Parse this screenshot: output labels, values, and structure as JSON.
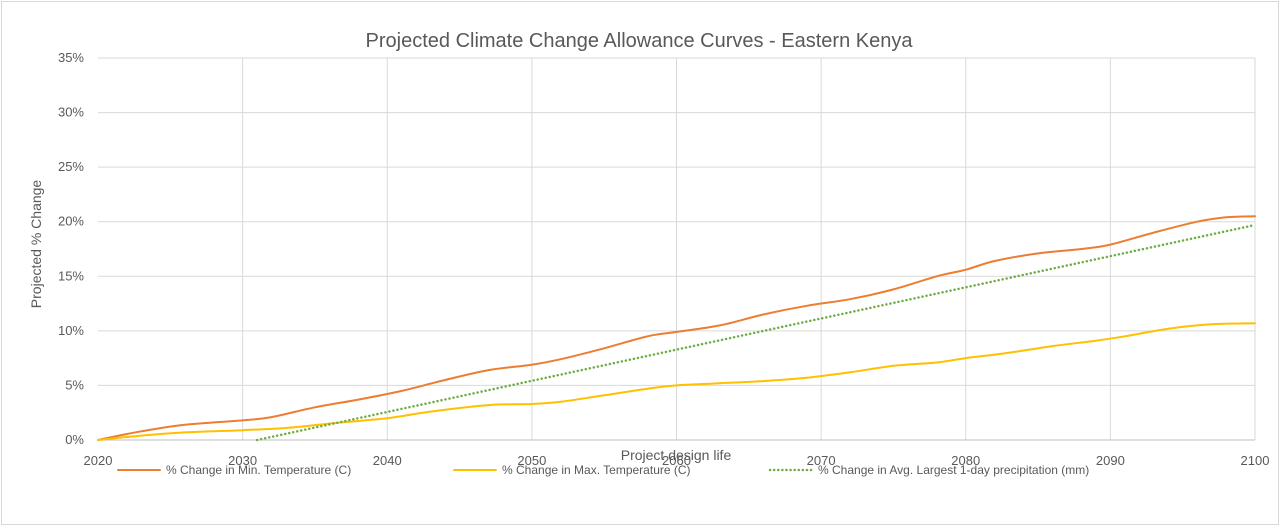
{
  "chart_data": {
    "type": "line",
    "title": "Projected Climate Change Allowance Curves - Eastern Kenya",
    "xlabel": "Project design life",
    "ylabel": "Projected % Change",
    "xlim": [
      2020,
      2100
    ],
    "ylim": [
      0,
      35
    ],
    "x_ticks": [
      "2020",
      "2030",
      "2040",
      "2050",
      "2060",
      "2070",
      "2080",
      "2090",
      "2100"
    ],
    "y_ticks": [
      "0%",
      "5%",
      "10%",
      "15%",
      "20%",
      "25%",
      "30%",
      "35%"
    ],
    "grid": true,
    "legend_position": "bottom",
    "series": [
      {
        "name": "% Change in Min. Temperature (C)",
        "color": "#ed7d31",
        "style": "solid",
        "x": [
          2020,
          2023,
          2026,
          2030,
          2032,
          2035,
          2038,
          2041,
          2044,
          2047,
          2050,
          2052,
          2055,
          2058,
          2060,
          2063,
          2066,
          2069,
          2072,
          2075,
          2078,
          2080,
          2082,
          2085,
          2088,
          2090,
          2093,
          2096,
          2098,
          2100
        ],
        "y": [
          0,
          0.8,
          1.4,
          1.8,
          2.1,
          3.0,
          3.7,
          4.5,
          5.5,
          6.4,
          6.9,
          7.4,
          8.4,
          9.5,
          9.9,
          10.5,
          11.5,
          12.3,
          12.9,
          13.8,
          15.0,
          15.6,
          16.4,
          17.1,
          17.5,
          17.9,
          19.0,
          20.0,
          20.4,
          20.5
        ]
      },
      {
        "name": "% Change in Max. Temperature (C)",
        "color": "#ffc000",
        "style": "solid",
        "x": [
          2020,
          2023,
          2026,
          2030,
          2033,
          2036,
          2040,
          2043,
          2047,
          2050,
          2052,
          2055,
          2058,
          2060,
          2063,
          2066,
          2069,
          2072,
          2075,
          2078,
          2080,
          2083,
          2086,
          2089,
          2091,
          2094,
          2097,
          2100
        ],
        "y": [
          0,
          0.4,
          0.7,
          0.9,
          1.1,
          1.5,
          2.0,
          2.6,
          3.2,
          3.3,
          3.5,
          4.1,
          4.7,
          5.0,
          5.2,
          5.4,
          5.7,
          6.2,
          6.8,
          7.1,
          7.5,
          8.0,
          8.6,
          9.1,
          9.5,
          10.2,
          10.6,
          10.7
        ]
      },
      {
        "name": "% Change in Avg. Largest 1-day precipitation  (mm)",
        "color": "#70ad47",
        "style": "dotted",
        "x": [
          2031,
          2100
        ],
        "y": [
          0,
          19.7
        ]
      }
    ]
  }
}
